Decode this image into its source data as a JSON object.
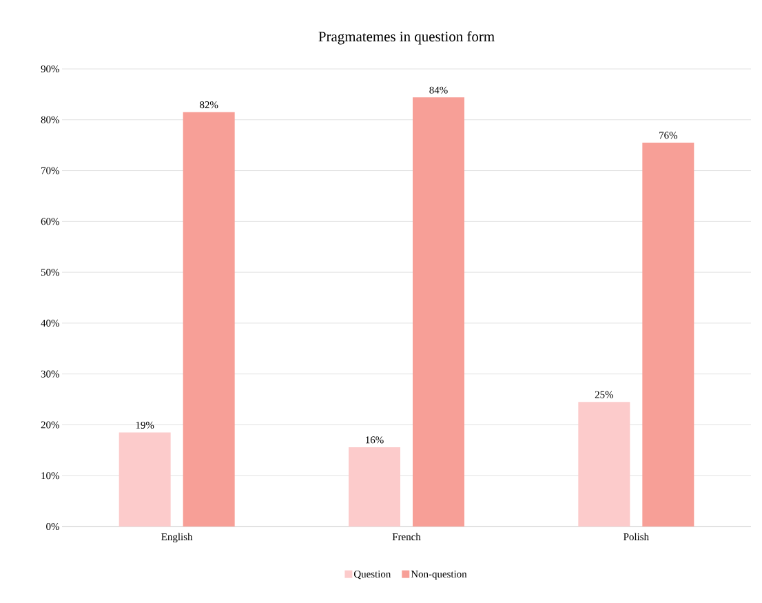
{
  "chart_data": {
    "type": "bar",
    "title": "Pragmatemes in question form",
    "categories": [
      "English",
      "French",
      "Polish"
    ],
    "series": [
      {
        "name": "Question",
        "color": "#fccbcb",
        "values": [
          18.5,
          15.6,
          24.5
        ],
        "value_labels": [
          "19%",
          "16%",
          "25%"
        ]
      },
      {
        "name": "Non-question",
        "color": "#f79f97",
        "values": [
          81.5,
          84.4,
          75.5
        ],
        "value_labels": [
          "82%",
          "84%",
          "76%"
        ]
      }
    ],
    "ylim": [
      0,
      90
    ],
    "yticks": [
      {
        "value": 0,
        "label": "0%"
      },
      {
        "value": 10,
        "label": "10%"
      },
      {
        "value": 20,
        "label": "20%"
      },
      {
        "value": 30,
        "label": "30%"
      },
      {
        "value": 40,
        "label": "40%"
      },
      {
        "value": 50,
        "label": "50%"
      },
      {
        "value": 60,
        "label": "60%"
      },
      {
        "value": 70,
        "label": "70%"
      },
      {
        "value": 80,
        "label": "80%"
      },
      {
        "value": 90,
        "label": "90%"
      }
    ],
    "grid": "y",
    "legend": "bottom"
  }
}
